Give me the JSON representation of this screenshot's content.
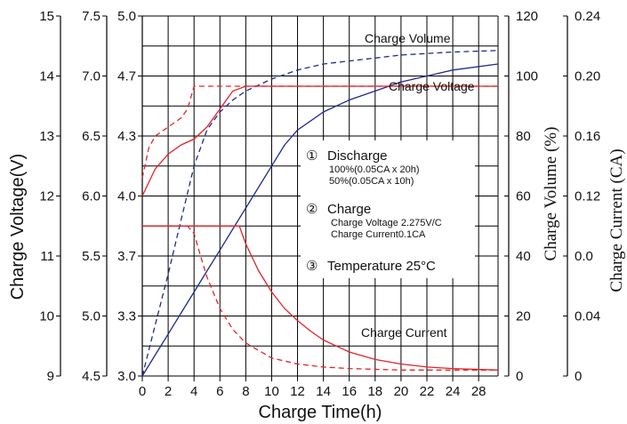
{
  "chart_data": {
    "type": "line",
    "xlabel": "Charge Time(h)",
    "x_ticks": [
      "0",
      "2",
      "4",
      "6",
      "8",
      "10",
      "12",
      "14",
      "16",
      "18",
      "20",
      "22",
      "24",
      "28"
    ],
    "xlim": [
      0,
      27.5
    ],
    "y_left_label": "Charge Voltage(V)",
    "y_left_12v_ticks": [
      "9",
      "10",
      "11",
      "12",
      "13",
      "14",
      "15"
    ],
    "y_left_12v_range": [
      9,
      15
    ],
    "y_left_6v_ticks": [
      "4.5",
      "5.0",
      "5.5",
      "6.0",
      "6.5",
      "7.0",
      "7.5"
    ],
    "y_left_6v_range": [
      4.5,
      7.5
    ],
    "y_left_cell_ticks": [
      "3.0",
      "3.3",
      "3.7",
      "4.0",
      "4.3",
      "4.7",
      "5.0"
    ],
    "y_left_cell_range": [
      3.0,
      5.0
    ],
    "y_volume_label": "Charge Volume (%)",
    "y_volume_ticks": [
      "0",
      "20",
      "40",
      "60",
      "80",
      "100",
      "120"
    ],
    "y_volume_range": [
      0,
      120
    ],
    "y_current_label": "Charge Current (CA)",
    "y_current_ticks": [
      "0",
      "0.04",
      "0.0",
      "0.12",
      "0.16",
      "0.20",
      "0.24"
    ],
    "y_current_range": [
      0,
      0.24
    ],
    "grid": true,
    "series": [
      {
        "name": "Charge Volume",
        "style": "solid",
        "color": "#1f2a8a",
        "axis": "volume",
        "x": [
          0,
          1,
          2,
          3,
          4,
          5,
          6,
          7,
          8,
          9,
          10,
          11,
          12,
          14,
          16,
          18,
          20,
          22,
          24,
          27.5
        ],
        "y": [
          0,
          7,
          14,
          21,
          28,
          35,
          42,
          49,
          56,
          63,
          70,
          77,
          82,
          88,
          92,
          95,
          98,
          100,
          102,
          104
        ]
      },
      {
        "name": "",
        "style": "dashed",
        "color": "#1f2a8a",
        "axis": "volume",
        "x": [
          0,
          1,
          2,
          3,
          4,
          5,
          6,
          7,
          8,
          10,
          12,
          14,
          16,
          18,
          20,
          22,
          24,
          27.5
        ],
        "y": [
          0,
          17,
          34,
          52,
          70,
          82,
          88,
          92,
          95,
          99,
          102,
          104,
          105,
          106,
          107,
          107.5,
          108,
          108.5
        ]
      },
      {
        "name": "Charge Voltage",
        "style": "solid",
        "color": "#e3232c",
        "axis": "voltage",
        "x": [
          0,
          1,
          2,
          3,
          4,
          5,
          6,
          7,
          8,
          10,
          12,
          14,
          16,
          20,
          24,
          27.5
        ],
        "y": [
          12.0,
          12.45,
          12.7,
          12.85,
          12.95,
          13.15,
          13.45,
          13.75,
          13.83,
          13.83,
          13.83,
          13.83,
          13.83,
          13.83,
          13.83,
          13.83
        ]
      },
      {
        "name": "",
        "style": "dashed",
        "color": "#e3232c",
        "axis": "voltage",
        "x": [
          0,
          0.5,
          1,
          2,
          3,
          3.5,
          4,
          5,
          6,
          8,
          12,
          16,
          20,
          24,
          27.5
        ],
        "y": [
          12.3,
          12.8,
          13.0,
          13.15,
          13.3,
          13.45,
          13.83,
          13.83,
          13.83,
          13.83,
          13.83,
          13.83,
          13.83,
          13.83,
          13.83
        ]
      },
      {
        "name": "Charge Current",
        "style": "solid",
        "color": "#e3232c",
        "axis": "current",
        "x": [
          0,
          2,
          4,
          6,
          7,
          7.5,
          8,
          9,
          10,
          11,
          12,
          13,
          14,
          16,
          18,
          20,
          22,
          24,
          27.5
        ],
        "y": [
          0.1,
          0.1,
          0.1,
          0.1,
          0.1,
          0.1,
          0.088,
          0.07,
          0.056,
          0.045,
          0.037,
          0.03,
          0.024,
          0.016,
          0.011,
          0.008,
          0.006,
          0.005,
          0.004
        ]
      },
      {
        "name": "",
        "style": "dashed",
        "color": "#e3232c",
        "axis": "current",
        "x": [
          0,
          2,
          3.5,
          4,
          4.5,
          5,
          6,
          7,
          8,
          10,
          12,
          14,
          16,
          20,
          24,
          27.5
        ],
        "y": [
          0.1,
          0.1,
          0.1,
          0.095,
          0.08,
          0.066,
          0.045,
          0.031,
          0.022,
          0.012,
          0.008,
          0.006,
          0.005,
          0.004,
          0.004,
          0.004
        ]
      }
    ],
    "annotations": {
      "volume_label": "Charge Volume",
      "voltage_label": "Charge Voltage",
      "current_label": "Charge Current"
    },
    "notes": {
      "n1_symbol": "①",
      "n1_title": "Discharge",
      "n1_line1": "100%(0.05CA x 20h)",
      "n1_line2": "50%(0.05CA x 10h)",
      "n2_symbol": "②",
      "n2_title": "Charge",
      "n2_line1": "Charge Voltage 2.275V/C",
      "n2_line2": "Charge Current0.1CA",
      "n3_symbol": "③",
      "n3_title": "Temperature 25",
      "n3_unit": "°C"
    }
  }
}
